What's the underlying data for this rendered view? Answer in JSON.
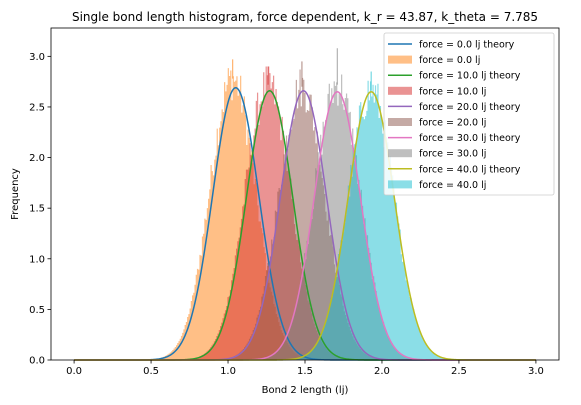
{
  "chart_data": {
    "type": "histogram",
    "title": "Single bond length histogram, force dependent, k_r = 43.87, k_theta = 7.785",
    "xlabel": "Bond 2 length (lj)",
    "ylabel": "Frequency",
    "xlim": [
      -0.15,
      3.15
    ],
    "ylim": [
      0,
      3.28
    ],
    "xticks": [
      "0.0",
      "0.5",
      "1.0",
      "1.5",
      "2.0",
      "2.5",
      "3.0"
    ],
    "yticks": [
      "0.0",
      "0.5",
      "1.0",
      "1.5",
      "2.0",
      "2.5",
      "3.0"
    ],
    "grid": false,
    "legend_position": "top-right",
    "curve_x_range": [
      0,
      3
    ],
    "series": [
      {
        "name": "force = 0.0 lj theory",
        "kind": "line",
        "color": "#1f77b4",
        "mean": 1.05,
        "sd": 0.15,
        "peak": 2.69
      },
      {
        "name": "force = 0.0 lj",
        "kind": "hist",
        "color": "#ff7f0e",
        "mean": 1.03,
        "sd": 0.15,
        "peak": 2.78,
        "max": 2.97
      },
      {
        "name": "force = 10.0 lj theory",
        "kind": "line",
        "color": "#2ca02c",
        "mean": 1.27,
        "sd": 0.15,
        "peak": 2.66
      },
      {
        "name": "force = 10.0 lj",
        "kind": "hist",
        "color": "#d62728",
        "mean": 1.26,
        "sd": 0.15,
        "peak": 2.72,
        "max": 2.9
      },
      {
        "name": "force = 20.0 lj theory",
        "kind": "line",
        "color": "#9467bd",
        "mean": 1.49,
        "sd": 0.15,
        "peak": 2.66
      },
      {
        "name": "force = 20.0 lj",
        "kind": "hist",
        "color": "#8c564b",
        "mean": 1.48,
        "sd": 0.15,
        "peak": 2.7,
        "max": 2.95
      },
      {
        "name": "force = 30.0 lj theory",
        "kind": "line",
        "color": "#e377c2",
        "mean": 1.71,
        "sd": 0.15,
        "peak": 2.65
      },
      {
        "name": "force = 30.0 lj",
        "kind": "hist",
        "color": "#7f7f7f",
        "mean": 1.71,
        "sd": 0.15,
        "peak": 2.72,
        "max": 3.08
      },
      {
        "name": "force = 40.0 lj theory",
        "kind": "line",
        "color": "#bcbd22",
        "mean": 1.93,
        "sd": 0.15,
        "peak": 2.65
      },
      {
        "name": "force = 40.0 lj",
        "kind": "hist",
        "color": "#17becf",
        "mean": 1.93,
        "sd": 0.15,
        "peak": 2.66,
        "max": 2.85
      }
    ]
  }
}
